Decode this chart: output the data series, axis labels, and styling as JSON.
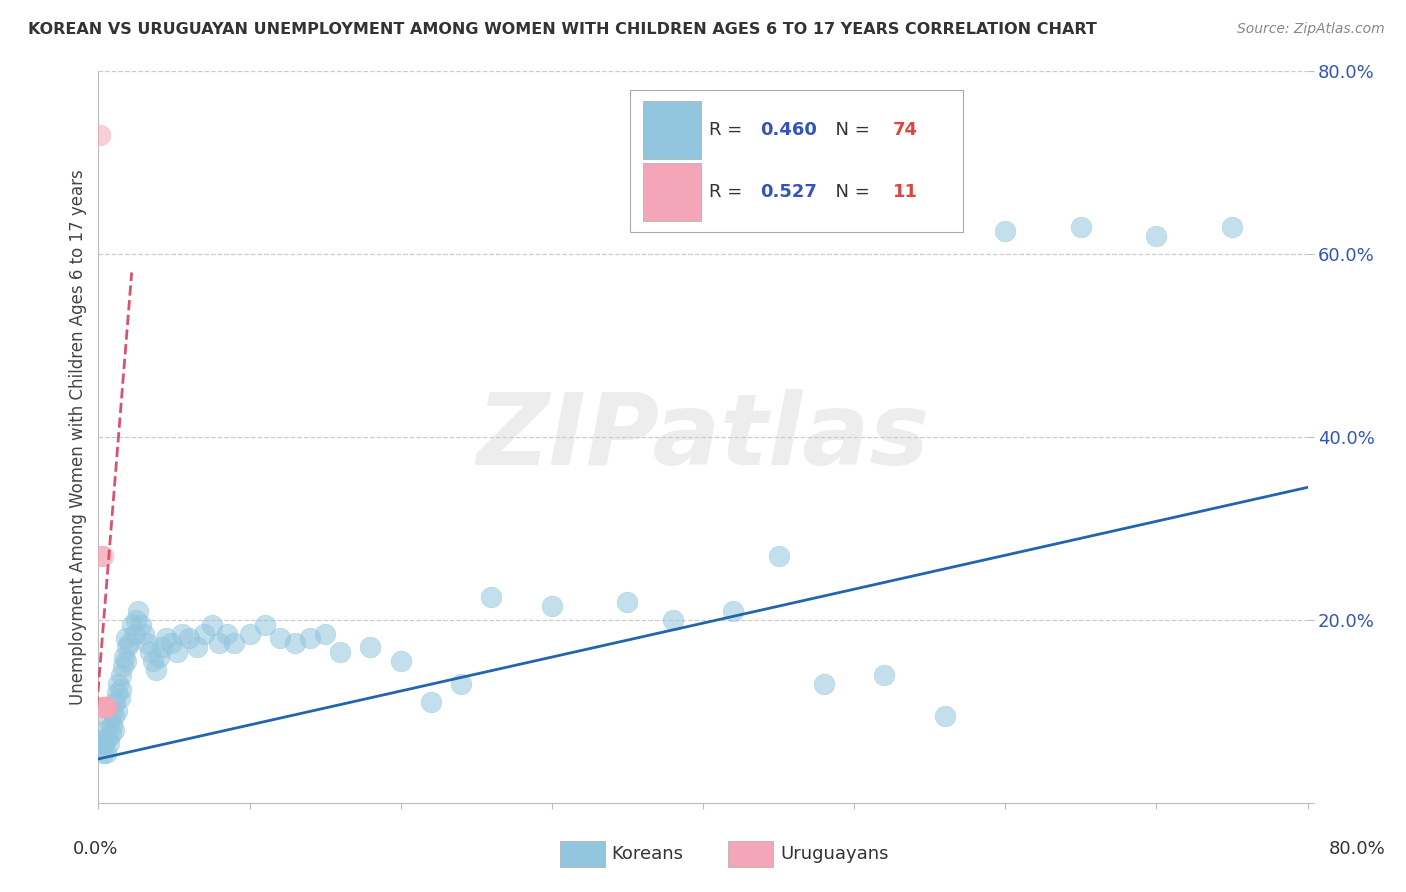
{
  "title": "KOREAN VS URUGUAYAN UNEMPLOYMENT AMONG WOMEN WITH CHILDREN AGES 6 TO 17 YEARS CORRELATION CHART",
  "source": "Source: ZipAtlas.com",
  "ylabel": "Unemployment Among Women with Children Ages 6 to 17 years",
  "xlim": [
    0,
    0.8
  ],
  "ylim": [
    0,
    0.8
  ],
  "korean_R": 0.46,
  "korean_N": 74,
  "uruguayan_R": 0.527,
  "uruguayan_N": 11,
  "korean_color": "#92c5de",
  "uruguayan_color": "#f4a6b8",
  "korean_line_color": "#2166ac",
  "uruguayan_line_color": "#d6546e",
  "background_color": "#ffffff",
  "watermark_text": "ZIPatlas",
  "korean_x": [
    0.002,
    0.003,
    0.003,
    0.004,
    0.005,
    0.005,
    0.006,
    0.007,
    0.007,
    0.008,
    0.009,
    0.009,
    0.01,
    0.01,
    0.011,
    0.012,
    0.012,
    0.013,
    0.014,
    0.015,
    0.015,
    0.016,
    0.017,
    0.018,
    0.018,
    0.019,
    0.02,
    0.022,
    0.024,
    0.025,
    0.026,
    0.028,
    0.03,
    0.032,
    0.034,
    0.036,
    0.038,
    0.04,
    0.042,
    0.045,
    0.048,
    0.052,
    0.055,
    0.06,
    0.065,
    0.07,
    0.075,
    0.08,
    0.085,
    0.09,
    0.1,
    0.11,
    0.12,
    0.13,
    0.14,
    0.15,
    0.16,
    0.18,
    0.2,
    0.22,
    0.24,
    0.26,
    0.3,
    0.35,
    0.38,
    0.42,
    0.45,
    0.48,
    0.52,
    0.56,
    0.6,
    0.65,
    0.7,
    0.75
  ],
  "korean_y": [
    0.06,
    0.055,
    0.07,
    0.065,
    0.055,
    0.08,
    0.07,
    0.065,
    0.09,
    0.075,
    0.085,
    0.1,
    0.08,
    0.095,
    0.11,
    0.12,
    0.1,
    0.13,
    0.115,
    0.14,
    0.125,
    0.15,
    0.16,
    0.155,
    0.18,
    0.17,
    0.175,
    0.195,
    0.185,
    0.2,
    0.21,
    0.195,
    0.185,
    0.175,
    0.165,
    0.155,
    0.145,
    0.16,
    0.17,
    0.18,
    0.175,
    0.165,
    0.185,
    0.18,
    0.17,
    0.185,
    0.195,
    0.175,
    0.185,
    0.175,
    0.185,
    0.195,
    0.18,
    0.175,
    0.18,
    0.185,
    0.165,
    0.17,
    0.155,
    0.11,
    0.13,
    0.225,
    0.215,
    0.22,
    0.2,
    0.21,
    0.27,
    0.13,
    0.14,
    0.095,
    0.625,
    0.63,
    0.62,
    0.63
  ],
  "uruguayan_x": [
    0.001,
    0.002,
    0.003,
    0.003,
    0.003,
    0.004,
    0.004,
    0.004,
    0.005,
    0.005,
    0.005
  ],
  "uruguayan_y": [
    0.73,
    0.27,
    0.27,
    0.105,
    0.105,
    0.105,
    0.105,
    0.105,
    0.105,
    0.105,
    0.105
  ],
  "korean_reg": [
    0.0,
    0.8,
    0.048,
    0.345
  ],
  "uruguayan_reg": [
    -0.005,
    0.022,
    0.025,
    0.58
  ],
  "ytick_vals": [
    0.0,
    0.2,
    0.4,
    0.6,
    0.8
  ],
  "ytick_labels": [
    "",
    "20.0%",
    "40.0%",
    "60.0%",
    "80.0%"
  ],
  "legend_r_color": "#3355bb",
  "legend_n_color": "#dd4444"
}
